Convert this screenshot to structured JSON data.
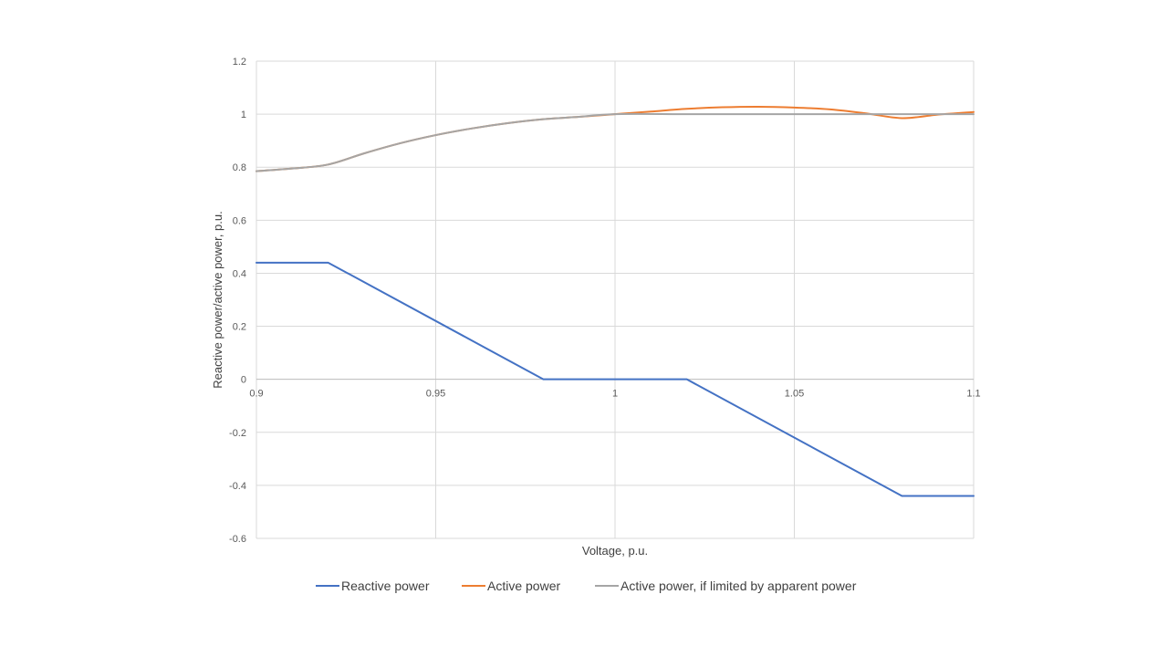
{
  "chart_data": {
    "type": "line",
    "title": "",
    "xlabel": "Voltage, p.u.",
    "ylabel": "Reactive power/active power, p.u.",
    "xlim": [
      0.9,
      1.1
    ],
    "ylim": [
      -0.6,
      1.2
    ],
    "x_ticks": [
      "0.9",
      "0.95",
      "1",
      "1.05",
      "1.1"
    ],
    "x_tick_values": [
      0.9,
      0.95,
      1.0,
      1.05,
      1.1
    ],
    "y_ticks": [
      "1.2",
      "1",
      "0.8",
      "0.6",
      "0.4",
      "0.2",
      "0",
      "-0.2",
      "-0.4",
      "-0.6"
    ],
    "y_tick_values": [
      1.2,
      1.0,
      0.8,
      0.6,
      0.4,
      0.2,
      0.0,
      -0.2,
      -0.4,
      -0.6
    ],
    "grid": true,
    "legend_position": "bottom",
    "series": [
      {
        "name": "Reactive power",
        "color": "#4472C4",
        "points": [
          [
            0.9,
            0.44
          ],
          [
            0.92,
            0.44
          ],
          [
            0.98,
            0.0
          ],
          [
            1.02,
            0.0
          ],
          [
            1.08,
            -0.44
          ],
          [
            1.1,
            -0.44
          ]
        ]
      },
      {
        "name": "Active power",
        "color": "#ED7D31",
        "points": [
          [
            0.9,
            0.785
          ],
          [
            0.91,
            0.795
          ],
          [
            0.92,
            0.81
          ],
          [
            0.93,
            0.852
          ],
          [
            0.94,
            0.89
          ],
          [
            0.95,
            0.921
          ],
          [
            0.96,
            0.946
          ],
          [
            0.97,
            0.966
          ],
          [
            0.98,
            0.981
          ],
          [
            0.99,
            0.99
          ],
          [
            1.0,
            1.0
          ],
          [
            1.01,
            1.01
          ],
          [
            1.02,
            1.02
          ],
          [
            1.03,
            1.026
          ],
          [
            1.04,
            1.028
          ],
          [
            1.05,
            1.025
          ],
          [
            1.06,
            1.018
          ],
          [
            1.07,
            1.003
          ],
          [
            1.08,
            0.985
          ],
          [
            1.09,
            0.998
          ],
          [
            1.1,
            1.008
          ]
        ]
      },
      {
        "name": "Active power, if limited by apparent power",
        "color": "#A5A5A5",
        "points": [
          [
            0.9,
            0.785
          ],
          [
            0.91,
            0.795
          ],
          [
            0.92,
            0.81
          ],
          [
            0.93,
            0.852
          ],
          [
            0.94,
            0.89
          ],
          [
            0.95,
            0.921
          ],
          [
            0.96,
            0.946
          ],
          [
            0.97,
            0.966
          ],
          [
            0.98,
            0.981
          ],
          [
            0.99,
            0.99
          ],
          [
            1.0,
            1.0
          ],
          [
            1.02,
            1.0
          ],
          [
            1.04,
            1.0
          ],
          [
            1.06,
            1.0
          ],
          [
            1.08,
            1.0
          ],
          [
            1.1,
            1.0
          ]
        ]
      }
    ]
  }
}
